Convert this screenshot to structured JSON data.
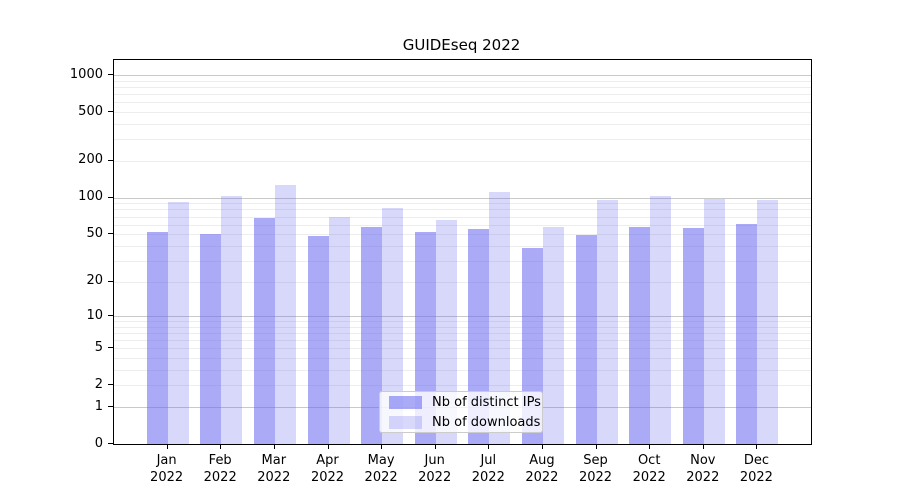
{
  "title": "GUIDEseq 2022",
  "legend": {
    "items": [
      {
        "label": "Nb of distinct IPs",
        "color": "rgba(100,100,240,0.55)"
      },
      {
        "label": "Nb of downloads",
        "color": "rgba(100,100,240,0.25)"
      }
    ],
    "position": "lower center inside plot"
  },
  "colors": {
    "bar_distinct_ips": "rgba(100,100,240,0.55)",
    "bar_downloads": "rgba(100,100,240,0.25)",
    "grid_major": "#c9c9c9",
    "grid_minor": "#ededed",
    "axis": "#000000",
    "text": "#000000"
  },
  "chart_data": {
    "type": "bar",
    "title": "GUIDEseq 2022",
    "xlabel": "",
    "ylabel": "",
    "year_label": "2022",
    "months": [
      "Jan",
      "Feb",
      "Mar",
      "Apr",
      "May",
      "Jun",
      "Jul",
      "Aug",
      "Sep",
      "Oct",
      "Nov",
      "Dec"
    ],
    "categories": [
      "Jan 2022",
      "Feb 2022",
      "Mar 2022",
      "Apr 2022",
      "May 2022",
      "Jun 2022",
      "Jul 2022",
      "Aug 2022",
      "Sep 2022",
      "Oct 2022",
      "Nov 2022",
      "Dec 2022"
    ],
    "series": [
      {
        "name": "Nb of distinct IPs",
        "color": "rgba(100,100,240,0.55)",
        "values": [
          52,
          50,
          68,
          48,
          57,
          52,
          55,
          38,
          49,
          57,
          56,
          61
        ]
      },
      {
        "name": "Nb of downloads",
        "color": "rgba(100,100,240,0.25)",
        "values": [
          93,
          103,
          127,
          70,
          82,
          65,
          112,
          57,
          96,
          103,
          98,
          95
        ]
      }
    ],
    "yscale": "symlog (y proportional to ln(1+v))",
    "ylim": [
      0,
      1330
    ],
    "y_ticks": [
      0,
      1,
      2,
      5,
      10,
      20,
      50,
      100,
      200,
      500,
      1000
    ],
    "grid": true,
    "grid_major_values": [
      1,
      10,
      100,
      1000
    ],
    "legend_position": "lower center"
  }
}
